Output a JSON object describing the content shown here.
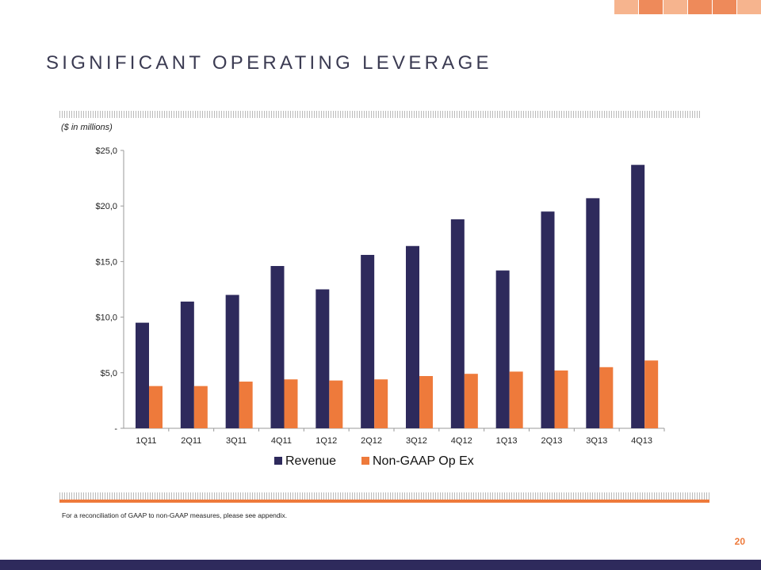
{
  "slide": {
    "title": "SIGNIFICANT OPERATING LEVERAGE",
    "units_note": "($ in millions)",
    "footnote": "For a reconciliation of GAAP to non-GAAP measures, please see appendix.",
    "page_number": "20"
  },
  "colors": {
    "revenue": "#2e2a5c",
    "opex": "#ee7a3b",
    "title": "#3b3b52",
    "accent": "#ee7a3b",
    "bottom_bar": "#2e2a5c",
    "deco": [
      "#f6b48e",
      "#ee8a5a",
      "#f6b48e",
      "#ee8a5a",
      "#ee8a5a",
      "#f6b48e"
    ]
  },
  "chart_data": {
    "type": "bar",
    "categories": [
      "1Q11",
      "2Q11",
      "3Q11",
      "4Q11",
      "1Q12",
      "2Q12",
      "3Q12",
      "4Q12",
      "1Q13",
      "2Q13",
      "3Q13",
      "4Q13"
    ],
    "series": [
      {
        "name": "Revenue",
        "values": [
          9.5,
          11.4,
          12.0,
          14.6,
          12.5,
          15.6,
          16.4,
          18.8,
          14.2,
          19.5,
          20.7,
          23.7
        ]
      },
      {
        "name": "Non-GAAP Op Ex",
        "values": [
          3.8,
          3.8,
          4.2,
          4.4,
          4.3,
          4.4,
          4.7,
          4.9,
          5.1,
          5.2,
          5.5,
          6.1
        ]
      }
    ],
    "ylim": [
      0,
      25
    ],
    "yticks": [
      0,
      5,
      10,
      15,
      20,
      25
    ],
    "ytick_labels": [
      "-",
      "$5,0",
      "$10,0",
      "$15,0",
      "$20,0",
      "$25,0"
    ],
    "legend_position": "bottom",
    "grid": false
  }
}
